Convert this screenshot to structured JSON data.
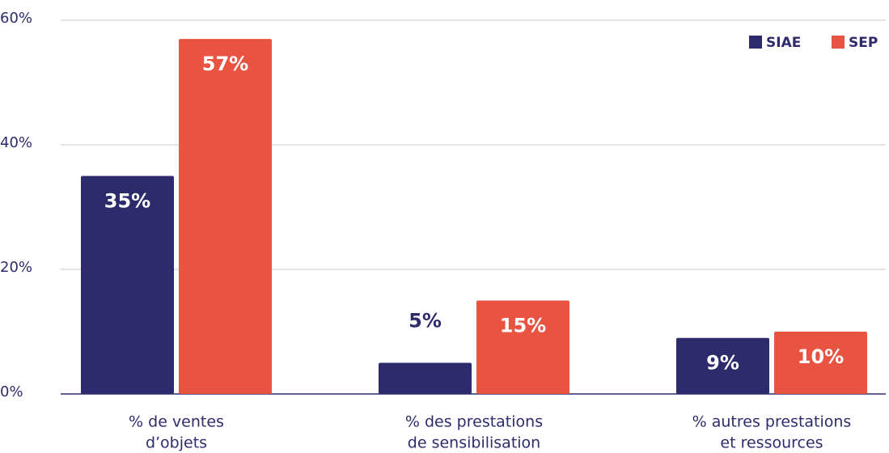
{
  "chart_data": {
    "type": "bar",
    "categories": [
      [
        "% de ventes",
        "d’objets"
      ],
      [
        "% des prestations",
        "de sensibilisation"
      ],
      [
        "% autres prestations",
        "et ressources"
      ]
    ],
    "series": [
      {
        "name": "SIAE",
        "color": "#2e2b6c",
        "values": [
          35,
          5,
          9
        ],
        "value_labels": [
          "35%",
          "5%",
          "9%"
        ]
      },
      {
        "name": "SEP",
        "color": "#e95442",
        "values": [
          57,
          15,
          10
        ],
        "value_labels": [
          "57%",
          "15%",
          "10%"
        ]
      }
    ],
    "ylim": [
      0,
      60
    ],
    "yticks": [
      {
        "value": 0,
        "label": "0%"
      },
      {
        "value": 20,
        "label": "20%"
      },
      {
        "value": 40,
        "label": "40%"
      },
      {
        "value": 60,
        "label": "60%"
      }
    ],
    "grid": true,
    "legend": "top-right"
  }
}
